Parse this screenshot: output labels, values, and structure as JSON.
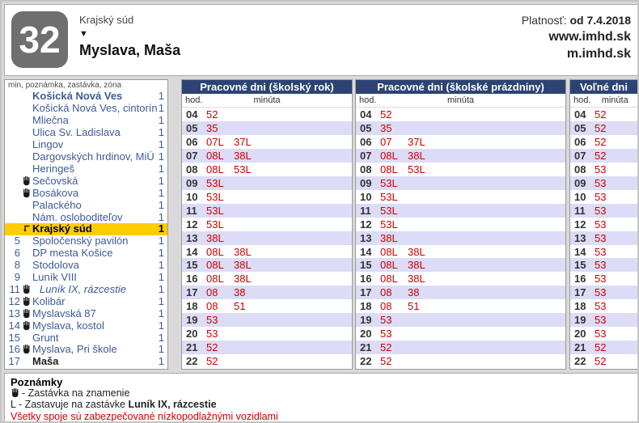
{
  "header": {
    "line_number": "32",
    "origin": "Krajský súd",
    "direction_symbol": "▼",
    "destination": "Myslava, Maša",
    "validity_label": "Platnosť:",
    "validity_value": "od 7.4.2018",
    "website": "www.imhd.sk",
    "website_mobile": "m.imhd.sk"
  },
  "stops_panel": {
    "column_header": "min, poznámka, zastávka, zóna",
    "stops": [
      {
        "min": "",
        "flag": false,
        "name": "Košická Nová Ves",
        "zone": "1",
        "style": "first"
      },
      {
        "min": "",
        "flag": false,
        "name": "Košická Nová Ves, cintorín",
        "zone": "1",
        "style": ""
      },
      {
        "min": "",
        "flag": false,
        "name": "Mliečna",
        "zone": "1",
        "style": ""
      },
      {
        "min": "",
        "flag": false,
        "name": "Ulica Sv. Ladislava",
        "zone": "1",
        "style": ""
      },
      {
        "min": "",
        "flag": false,
        "name": "Lingov",
        "zone": "1",
        "style": ""
      },
      {
        "min": "",
        "flag": false,
        "name": "Dargovských hrdinov, MiÚ",
        "zone": "1",
        "style": ""
      },
      {
        "min": "",
        "flag": false,
        "name": "Heringeš",
        "zone": "1",
        "style": ""
      },
      {
        "min": "",
        "flag": true,
        "name": "Sečovská",
        "zone": "1",
        "style": ""
      },
      {
        "min": "",
        "flag": true,
        "name": "Bosákova",
        "zone": "1",
        "style": ""
      },
      {
        "min": "",
        "flag": false,
        "name": "Palackého",
        "zone": "1",
        "style": ""
      },
      {
        "min": "",
        "flag": false,
        "name": "Nám. osloboditeľov",
        "zone": "1",
        "style": ""
      },
      {
        "min": "",
        "flag": false,
        "name": "Krajský súd",
        "zone": "1",
        "style": "current"
      },
      {
        "min": "5",
        "flag": false,
        "name": "Spoločenský pavilón",
        "zone": "1",
        "style": ""
      },
      {
        "min": "6",
        "flag": false,
        "name": "DP mesta Košice",
        "zone": "1",
        "style": ""
      },
      {
        "min": "8",
        "flag": false,
        "name": "Stodolova",
        "zone": "1",
        "style": ""
      },
      {
        "min": "9",
        "flag": false,
        "name": "Luník VIII",
        "zone": "1",
        "style": ""
      },
      {
        "min": "11",
        "flag": true,
        "name": "Luník IX, rázcestie",
        "zone": "1",
        "style": "italic"
      },
      {
        "min": "12",
        "flag": true,
        "name": "Kolibár",
        "zone": "1",
        "style": ""
      },
      {
        "min": "13",
        "flag": true,
        "name": "Myslavská 87",
        "zone": "1",
        "style": ""
      },
      {
        "min": "14",
        "flag": true,
        "name": "Myslava, kostol",
        "zone": "1",
        "style": ""
      },
      {
        "min": "15",
        "flag": false,
        "name": "Grunt",
        "zone": "1",
        "style": ""
      },
      {
        "min": "16",
        "flag": true,
        "name": "Myslava, Pri škole",
        "zone": "1",
        "style": ""
      },
      {
        "min": "17",
        "flag": false,
        "name": "Maša",
        "zone": "1",
        "style": "last"
      }
    ]
  },
  "timetable": {
    "columns": [
      {
        "title": "Pracovné dni (školský rok)",
        "hod_label": "hod.",
        "min_label": "minúta",
        "rows": [
          {
            "hour": "04",
            "minutes": [
              "52"
            ]
          },
          {
            "hour": "05",
            "minutes": [
              "35"
            ]
          },
          {
            "hour": "06",
            "minutes": [
              "07L",
              "37L"
            ]
          },
          {
            "hour": "07",
            "minutes": [
              "08L",
              "38L"
            ]
          },
          {
            "hour": "08",
            "minutes": [
              "08L",
              "53L"
            ]
          },
          {
            "hour": "09",
            "minutes": [
              "53L"
            ]
          },
          {
            "hour": "10",
            "minutes": [
              "53L"
            ]
          },
          {
            "hour": "11",
            "minutes": [
              "53L"
            ]
          },
          {
            "hour": "12",
            "minutes": [
              "53L"
            ]
          },
          {
            "hour": "13",
            "minutes": [
              "38L"
            ]
          },
          {
            "hour": "14",
            "minutes": [
              "08L",
              "38L"
            ]
          },
          {
            "hour": "15",
            "minutes": [
              "08L",
              "38L"
            ]
          },
          {
            "hour": "16",
            "minutes": [
              "08L",
              "38L"
            ]
          },
          {
            "hour": "17",
            "minutes": [
              "08",
              "38"
            ]
          },
          {
            "hour": "18",
            "minutes": [
              "08",
              "51"
            ]
          },
          {
            "hour": "19",
            "minutes": [
              "53"
            ]
          },
          {
            "hour": "20",
            "minutes": [
              "53"
            ]
          },
          {
            "hour": "21",
            "minutes": [
              "52"
            ]
          },
          {
            "hour": "22",
            "minutes": [
              "52"
            ]
          }
        ]
      },
      {
        "title": "Pracovné dni (školské prázdniny)",
        "hod_label": "hod.",
        "min_label": "minúta",
        "rows": [
          {
            "hour": "04",
            "minutes": [
              "52"
            ]
          },
          {
            "hour": "05",
            "minutes": [
              "35"
            ]
          },
          {
            "hour": "06",
            "minutes": [
              "07",
              "37L"
            ]
          },
          {
            "hour": "07",
            "minutes": [
              "08L",
              "38L"
            ]
          },
          {
            "hour": "08",
            "minutes": [
              "08L",
              "53L"
            ]
          },
          {
            "hour": "09",
            "minutes": [
              "53L"
            ]
          },
          {
            "hour": "10",
            "minutes": [
              "53L"
            ]
          },
          {
            "hour": "11",
            "minutes": [
              "53L"
            ]
          },
          {
            "hour": "12",
            "minutes": [
              "53L"
            ]
          },
          {
            "hour": "13",
            "minutes": [
              "38L"
            ]
          },
          {
            "hour": "14",
            "minutes": [
              "08L",
              "38L"
            ]
          },
          {
            "hour": "15",
            "minutes": [
              "08L",
              "38L"
            ]
          },
          {
            "hour": "16",
            "minutes": [
              "08L",
              "38L"
            ]
          },
          {
            "hour": "17",
            "minutes": [
              "08",
              "38"
            ]
          },
          {
            "hour": "18",
            "minutes": [
              "08",
              "51"
            ]
          },
          {
            "hour": "19",
            "minutes": [
              "53"
            ]
          },
          {
            "hour": "20",
            "minutes": [
              "53"
            ]
          },
          {
            "hour": "21",
            "minutes": [
              "52"
            ]
          },
          {
            "hour": "22",
            "minutes": [
              "52"
            ]
          }
        ]
      },
      {
        "title": "Voľné dni",
        "hod_label": "hod.",
        "min_label": "minúta",
        "rows": [
          {
            "hour": "04",
            "minutes": [
              "52"
            ]
          },
          {
            "hour": "05",
            "minutes": [
              "52"
            ]
          },
          {
            "hour": "06",
            "minutes": [
              "52"
            ]
          },
          {
            "hour": "07",
            "minutes": [
              "52"
            ]
          },
          {
            "hour": "08",
            "minutes": [
              "53"
            ]
          },
          {
            "hour": "09",
            "minutes": [
              "53"
            ]
          },
          {
            "hour": "10",
            "minutes": [
              "53"
            ]
          },
          {
            "hour": "11",
            "minutes": [
              "53"
            ]
          },
          {
            "hour": "12",
            "minutes": [
              "53"
            ]
          },
          {
            "hour": "13",
            "minutes": [
              "53"
            ]
          },
          {
            "hour": "14",
            "minutes": [
              "53"
            ]
          },
          {
            "hour": "15",
            "minutes": [
              "53"
            ]
          },
          {
            "hour": "16",
            "minutes": [
              "53"
            ]
          },
          {
            "hour": "17",
            "minutes": [
              "53"
            ]
          },
          {
            "hour": "18",
            "minutes": [
              "53"
            ]
          },
          {
            "hour": "19",
            "minutes": [
              "53"
            ]
          },
          {
            "hour": "20",
            "minutes": [
              "53"
            ]
          },
          {
            "hour": "21",
            "minutes": [
              "52"
            ]
          },
          {
            "hour": "22",
            "minutes": [
              "52"
            ]
          }
        ]
      }
    ]
  },
  "footer": {
    "title": "Poznámky",
    "note_flag_text": "- Zastávka na znamenie",
    "note_l_prefix": "L - Zastavuje na zastávke ",
    "note_l_bold": "Luník IX, rázcestie",
    "note_low_floor": "Všetky spoje sú zabezpečované nízkopodlažnými vozidlami"
  },
  "icons": {
    "request_stop": "hand-icon",
    "current_stop": "direction-marker-icon",
    "destination": "down-triangle-icon"
  },
  "colors": {
    "header_navy": "#2d4374",
    "minute_red": "#cc0000",
    "highlight_yellow": "#ffcc00",
    "row_alt_lavender": "#dcdcf7",
    "stop_blue": "#3d5a98",
    "badge_gray": "#6f6f6f"
  }
}
